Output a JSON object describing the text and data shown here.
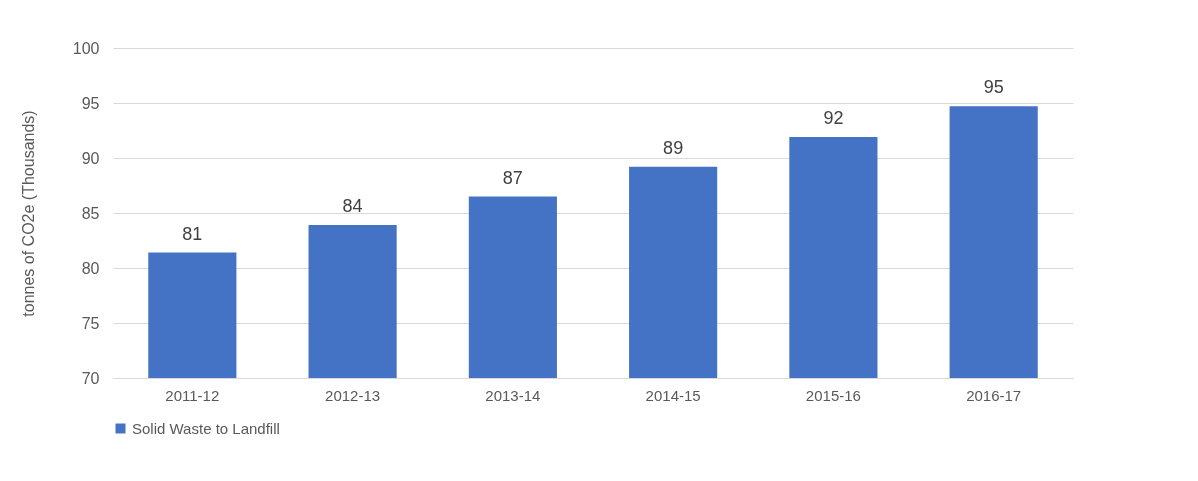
{
  "chart_data": {
    "type": "bar",
    "ylabel": "tonnes of CO2e (Thousands)",
    "categories": [
      "2011-12",
      "2012-13",
      "2013-14",
      "2014-15",
      "2015-16",
      "2016-17"
    ],
    "series": [
      {
        "name": "Solid Waste to Landfill",
        "color": "#4472c4",
        "values": [
          81.4,
          83.9,
          86.5,
          89.2,
          91.9,
          94.7
        ],
        "value_labels": [
          "81",
          "84",
          "87",
          "89",
          "92",
          "95"
        ]
      }
    ],
    "ylim": [
      70,
      100
    ],
    "yticks": [
      70,
      75,
      80,
      85,
      90,
      95,
      100
    ],
    "grid": "y",
    "legend": "bottom"
  }
}
